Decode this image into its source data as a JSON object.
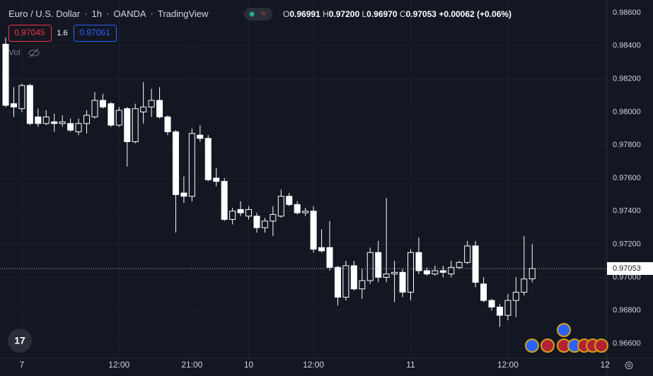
{
  "header": {
    "symbol": "Euro / U.S. Dollar",
    "interval": "1h",
    "broker": "OANDA",
    "source": "TradingView",
    "ohlc": [
      {
        "label": "O",
        "value": "0.96991"
      },
      {
        "label": "H",
        "value": "0.97200"
      },
      {
        "label": "L",
        "value": "0.96970"
      },
      {
        "label": "C",
        "value": "0.97053"
      }
    ],
    "change": "+0.00062 (+0.06%)",
    "sell": "0.97045",
    "spread": "1.6",
    "buy": "0.97061",
    "volume": "Vol"
  },
  "chart_data": {
    "type": "candlestick",
    "categories": [
      null,
      null,
      "7",
      null,
      null,
      null,
      null,
      null,
      null,
      null,
      null,
      null,
      null,
      null,
      "12:00",
      null,
      null,
      null,
      null,
      null,
      null,
      null,
      null,
      "21:00",
      null,
      null,
      null,
      null,
      null,
      null,
      "10",
      null,
      null,
      null,
      null,
      null,
      null,
      null,
      "12:00",
      null,
      null,
      null,
      null,
      null,
      null,
      null,
      null,
      null,
      null,
      null,
      "11",
      null,
      null,
      null,
      null,
      null,
      null,
      null,
      null,
      null,
      null,
      null,
      "12:00",
      null,
      null,
      null,
      null,
      null,
      null,
      null,
      null,
      null,
      null,
      null,
      "12"
    ],
    "open": [
      0.9841,
      0.9805,
      0.9802,
      0.9816,
      0.9797,
      0.9793,
      0.9794,
      0.9793,
      0.9793,
      0.9788,
      0.9793,
      0.9797,
      0.9807,
      0.9805,
      0.9792,
      0.9802,
      0.9782,
      0.98,
      0.9803,
      0.9807,
      0.9797,
      0.9788,
      0.9751,
      0.9749,
      0.9786,
      0.9784,
      0.976,
      0.9758,
      0.9735,
      0.9741,
      0.9737,
      0.9737,
      0.973,
      0.9734,
      0.9737,
      0.9749,
      0.9744,
      0.9739,
      0.974,
      0.9718,
      0.9718,
      0.9706,
      0.9688,
      0.9707,
      0.9693,
      0.9698,
      0.9715,
      0.97,
      0.9702,
      0.9703,
      0.9691,
      0.9715,
      0.9704,
      0.9702,
      0.9704,
      0.9702,
      0.9706,
      0.9709,
      0.9719,
      0.9696,
      0.9686,
      0.9682,
      0.9677,
      0.9686,
      0.9691,
      0.96991,
      null,
      null,
      null,
      null,
      null,
      null,
      null,
      null,
      null
    ],
    "high": [
      0.9845,
      0.9815,
      0.9817,
      0.9817,
      0.9802,
      0.9801,
      0.9799,
      0.9798,
      0.9796,
      0.9796,
      0.9801,
      0.9812,
      0.9811,
      0.9806,
      0.9803,
      0.9803,
      0.9805,
      0.9818,
      0.9814,
      0.9815,
      0.9798,
      0.9789,
      0.9761,
      0.979,
      0.9792,
      0.9786,
      0.9766,
      0.976,
      0.9742,
      0.9746,
      0.9743,
      0.9739,
      0.9736,
      0.9743,
      0.9753,
      0.9751,
      0.9746,
      0.9742,
      0.9743,
      0.9729,
      0.9734,
      0.9707,
      0.971,
      0.971,
      0.9705,
      0.9718,
      0.9722,
      0.9748,
      0.971,
      0.9705,
      0.9717,
      0.9724,
      0.9706,
      0.9707,
      0.9707,
      0.971,
      0.971,
      0.9722,
      0.9722,
      0.97,
      0.9687,
      0.9684,
      0.969,
      0.97,
      0.9725,
      0.972,
      null,
      null,
      null,
      null,
      null,
      null,
      null,
      null,
      null
    ],
    "low": [
      0.9803,
      0.9797,
      0.98,
      0.9792,
      0.9791,
      0.9792,
      0.9788,
      0.9791,
      0.9788,
      0.9786,
      0.9787,
      0.9796,
      0.9802,
      0.9791,
      0.9791,
      0.9767,
      0.9781,
      0.9793,
      0.9797,
      0.9796,
      0.9786,
      0.9727,
      0.9745,
      0.9746,
      0.9782,
      0.9758,
      0.9755,
      0.9734,
      0.9732,
      0.9737,
      0.9735,
      0.9727,
      0.9727,
      0.9725,
      0.9736,
      0.9743,
      0.9738,
      0.9737,
      0.9715,
      0.9715,
      0.9704,
      0.9683,
      0.9686,
      0.9692,
      0.9687,
      0.9696,
      0.9697,
      0.9697,
      0.9685,
      0.9688,
      0.9686,
      0.9702,
      0.9701,
      0.9701,
      0.97,
      0.97,
      0.9705,
      0.9708,
      0.9694,
      0.9685,
      0.968,
      0.967,
      0.9674,
      0.9676,
      0.9689,
      0.9697,
      null,
      null,
      null,
      null,
      null,
      null,
      null,
      null,
      null
    ],
    "close": [
      0.9804,
      0.9803,
      0.9816,
      0.9793,
      0.9793,
      0.9797,
      0.9793,
      0.9794,
      0.9789,
      0.9793,
      0.9798,
      0.9807,
      0.9803,
      0.9792,
      0.9801,
      0.9782,
      0.9802,
      0.9803,
      0.9807,
      0.9797,
      0.9788,
      0.975,
      0.9749,
      0.9787,
      0.9784,
      0.9759,
      0.9758,
      0.9735,
      0.974,
      0.9739,
      0.9741,
      0.973,
      0.9734,
      0.9738,
      0.9749,
      0.9744,
      0.9739,
      0.974,
      0.9717,
      0.9716,
      0.9706,
      0.9688,
      0.9707,
      0.9693,
      0.9698,
      0.9715,
      0.97,
      0.9702,
      0.9703,
      0.9691,
      0.9715,
      0.9704,
      0.9702,
      0.9704,
      0.9703,
      0.9706,
      0.9709,
      0.9719,
      0.9697,
      0.9686,
      0.9682,
      0.9677,
      0.9686,
      0.9691,
      0.9699,
      0.97053,
      null,
      null,
      null,
      null,
      null,
      null,
      null,
      null,
      null
    ],
    "ylim": [
      0.9651,
      0.98677
    ],
    "yticks": [
      {
        "value": 0.966,
        "label": "0.96600"
      },
      {
        "value": 0.968,
        "label": "0.96800"
      },
      {
        "value": 0.97,
        "label": "0.97000"
      },
      {
        "value": 0.972,
        "label": "0.97200"
      },
      {
        "value": 0.974,
        "label": "0.97400"
      },
      {
        "value": 0.976,
        "label": "0.97600"
      },
      {
        "value": 0.978,
        "label": "0.97800"
      },
      {
        "value": 0.98,
        "label": "0.98000"
      },
      {
        "value": 0.982,
        "label": "0.98200"
      },
      {
        "value": 0.984,
        "label": "0.98400"
      },
      {
        "value": 0.986,
        "label": "0.98600"
      }
    ],
    "up_color": "#131722",
    "down_color": "#ffffff",
    "wick_color": "#ffffff",
    "grid": true
  }
}
